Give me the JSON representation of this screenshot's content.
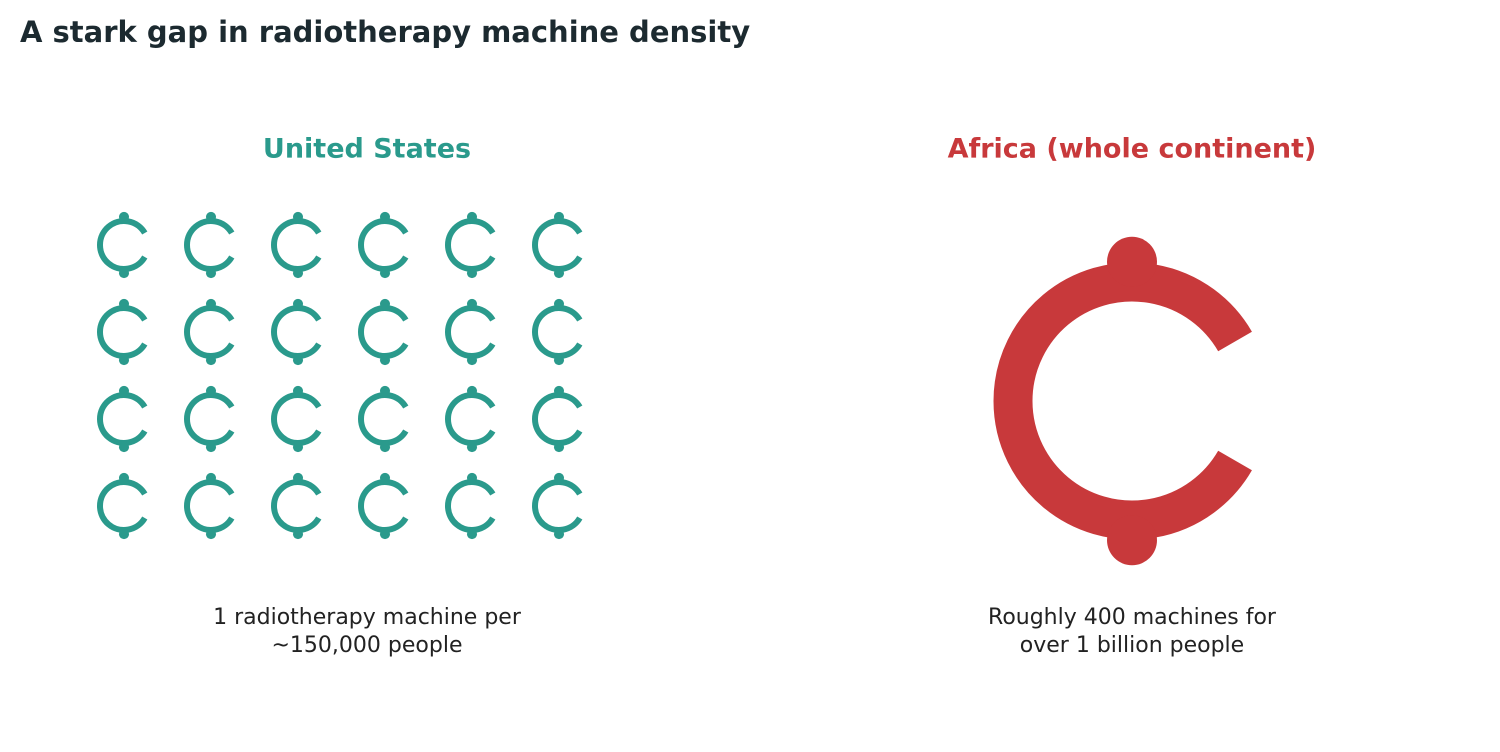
{
  "title": "A stark gap in radiotherapy machine density",
  "panels": [
    {
      "label": "United States",
      "color": "#2a9a8c",
      "caption": [
        "1 radiotherapy machine per",
        "~150,000 people"
      ]
    },
    {
      "label": "Africa (whole continent)",
      "color": "#c8393b",
      "caption": [
        "Roughly 400 machines for",
        "over 1 billion people"
      ]
    }
  ]
}
